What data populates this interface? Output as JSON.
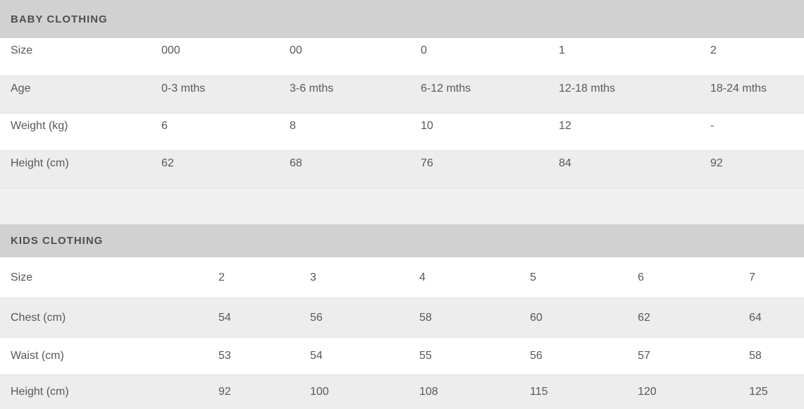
{
  "colors": {
    "section_header_bg": "#d1d1d1",
    "section_header_text": "#4f4f4f",
    "row_bg": "#ffffff",
    "row_alt_bg": "#ededed",
    "spacer_bg": "#f0f0f0",
    "body_text": "#58585a",
    "row_border": "#e0e0e0"
  },
  "tables": [
    {
      "title": "BABY CLOTHING",
      "rows": [
        {
          "label": "Size",
          "values": [
            "000",
            "00",
            "0",
            "1",
            "2"
          ]
        },
        {
          "label": "Age",
          "values": [
            "0-3 mths",
            "3-6 mths",
            "6-12 mths",
            "12-18 mths",
            "18-24 mths"
          ]
        },
        {
          "label": "Weight (kg)",
          "values": [
            "6",
            "8",
            "10",
            "12",
            "-"
          ]
        },
        {
          "label": "Height (cm)",
          "values": [
            "62",
            "68",
            "76",
            "84",
            "92"
          ]
        }
      ]
    },
    {
      "title": "KIDS CLOTHING",
      "rows": [
        {
          "label": "Size",
          "values": [
            "2",
            "3",
            "4",
            "5",
            "6",
            "7"
          ]
        },
        {
          "label": "Chest (cm)",
          "values": [
            "54",
            "56",
            "58",
            "60",
            "62",
            "64"
          ]
        },
        {
          "label": "Waist (cm)",
          "values": [
            "53",
            "54",
            "55",
            "56",
            "57",
            "58"
          ]
        },
        {
          "label": "Height (cm)",
          "values": [
            "92",
            "100",
            "108",
            "115",
            "120",
            "125"
          ]
        }
      ]
    }
  ]
}
